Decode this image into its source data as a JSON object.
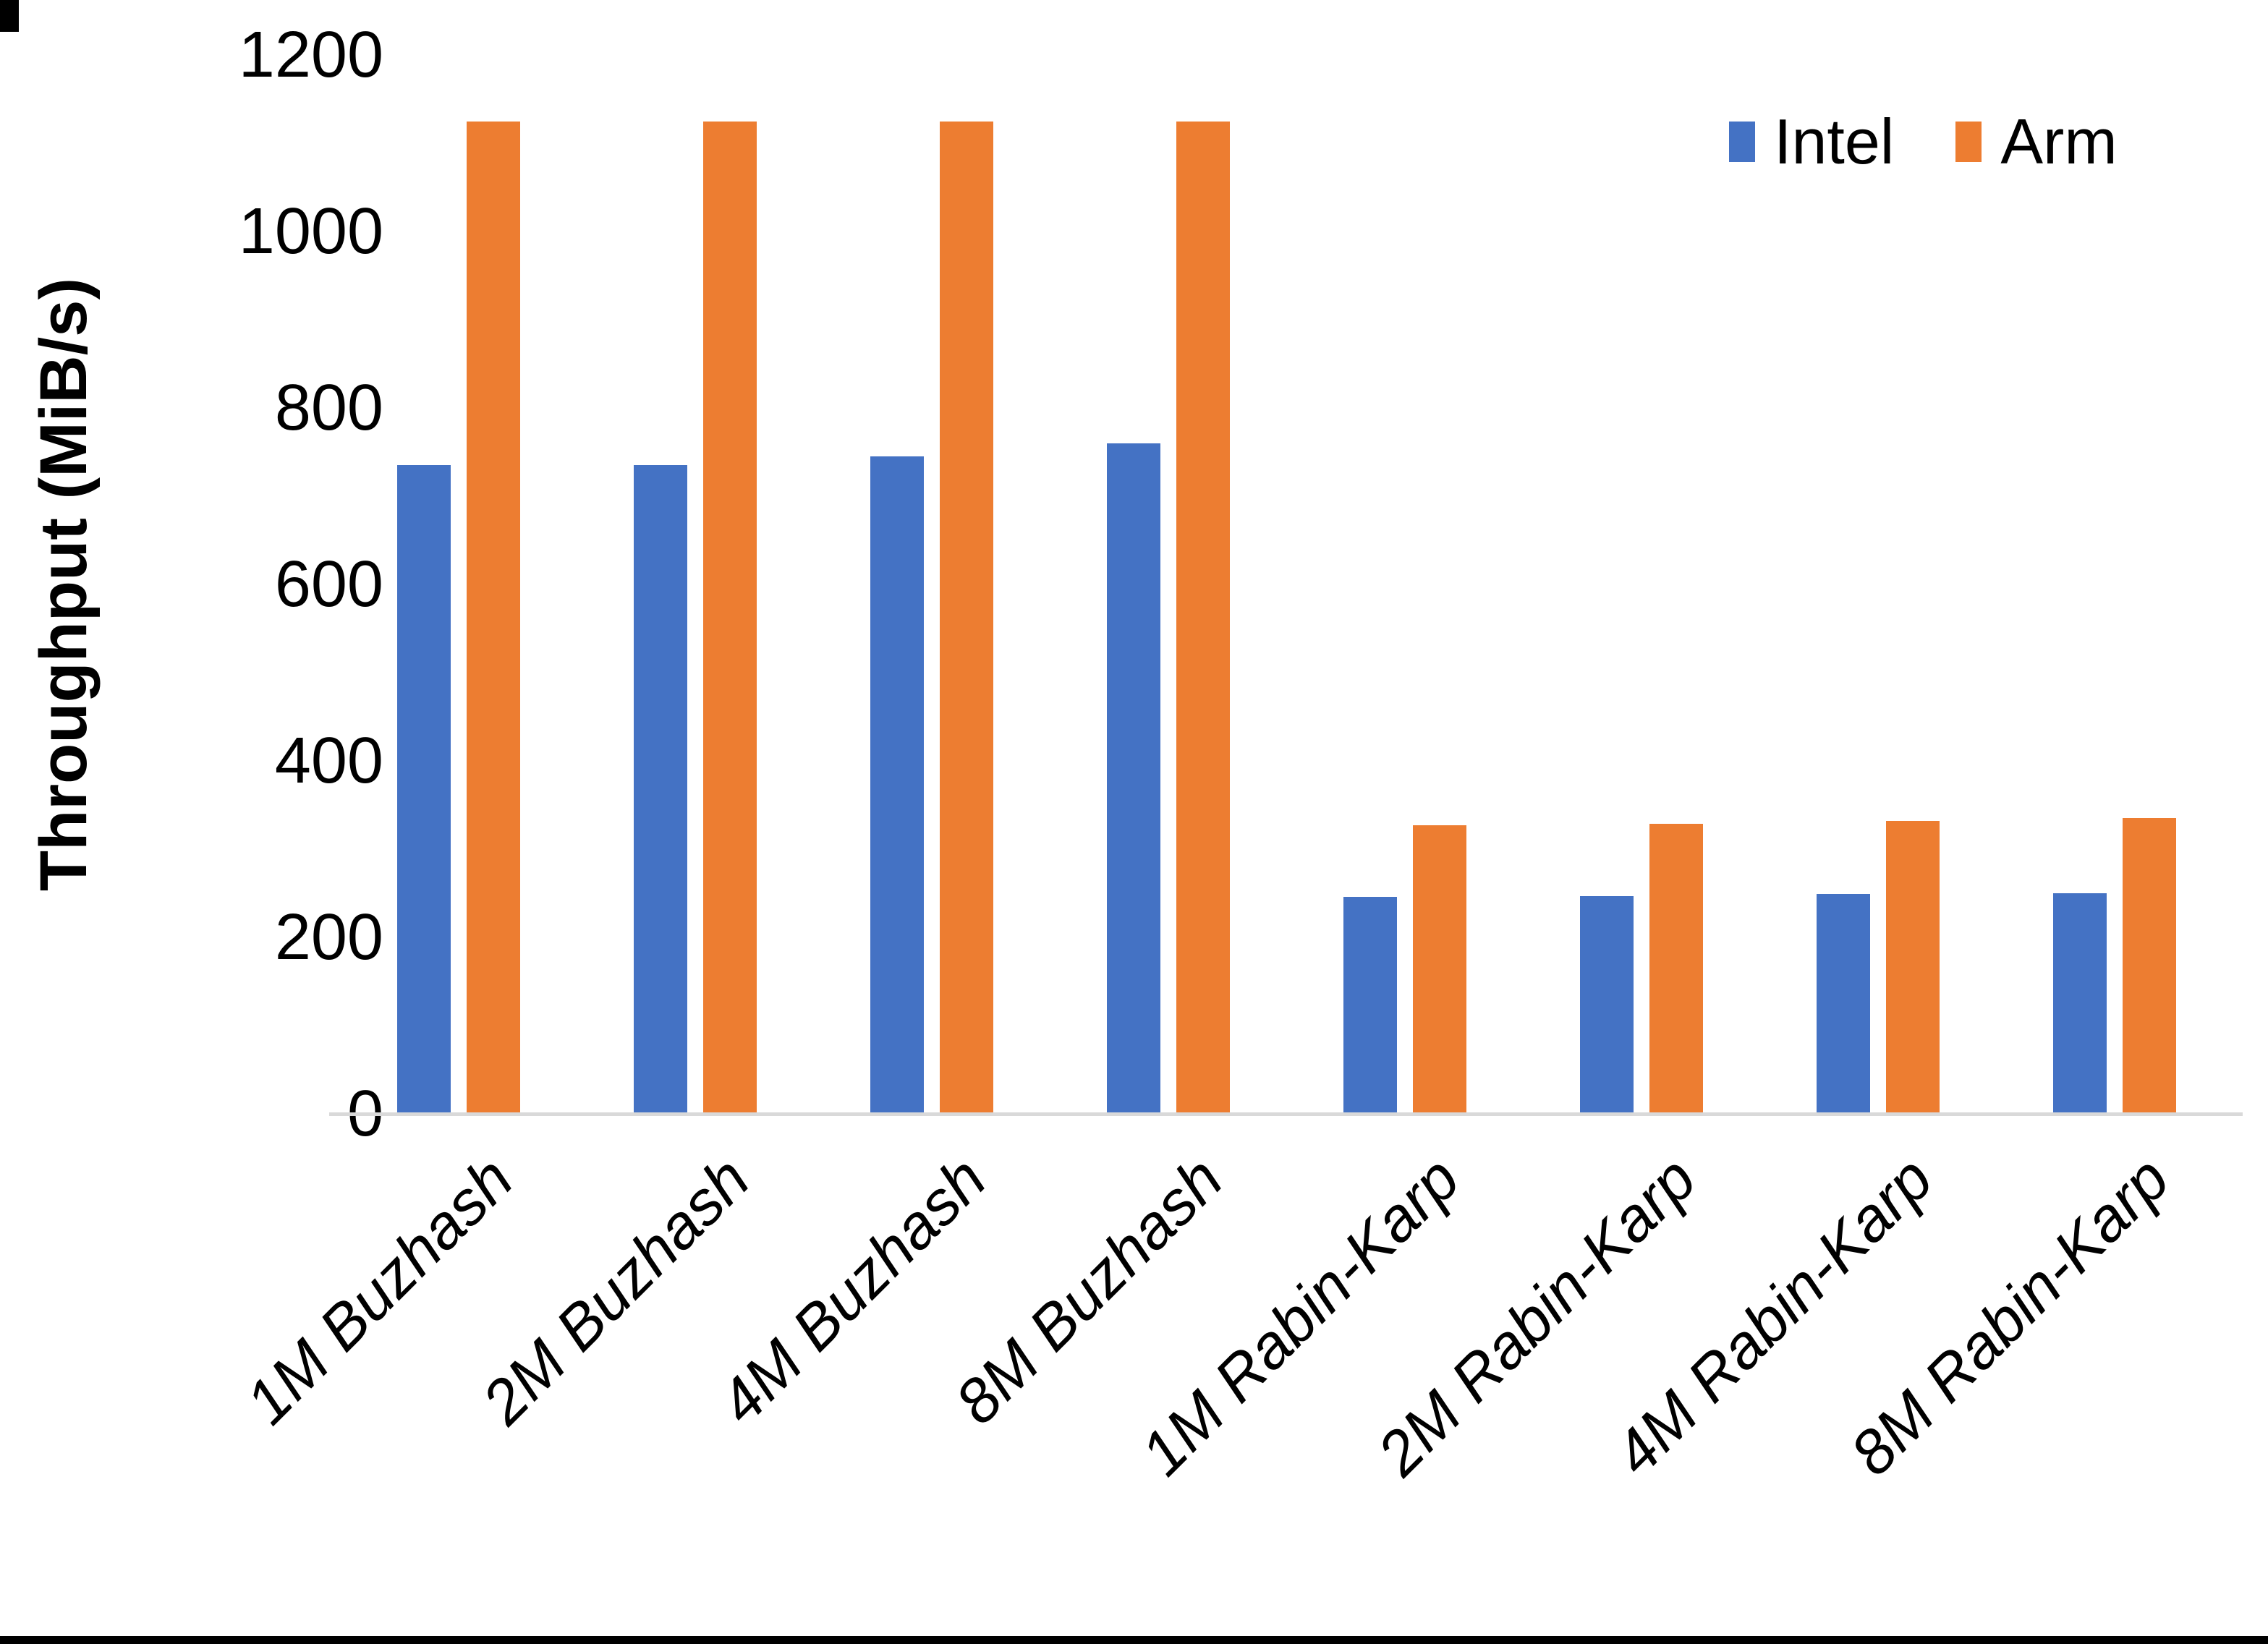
{
  "chart_data": {
    "type": "bar",
    "title": "",
    "categories": [
      "1M Buzhash",
      "2M Buzhash",
      "4M Buzhash",
      "8M Buzhash",
      "1M Rabin-Karp",
      "2M Rabin-Karp",
      "4M Rabin-Karp",
      "8M Rabin-Karp"
    ],
    "series": [
      {
        "name": "Intel",
        "color": "#4472C4",
        "values": [
          735,
          735,
          745,
          760,
          246,
          247,
          249,
          250
        ]
      },
      {
        "name": "Arm",
        "color": "#ED7D31",
        "values": [
          1125,
          1125,
          1125,
          1125,
          327,
          329,
          332,
          335
        ]
      }
    ],
    "xlabel": "",
    "ylabel": "Throughput (MiB/s)",
    "ylim": [
      0,
      1200
    ],
    "ytick_interval": 200,
    "ytick_labels": [
      "1200",
      "1000",
      "800",
      "600",
      "400",
      "200",
      "0"
    ],
    "grid": false,
    "legend_position": "top-right",
    "axis_line_color": "#D9D9D9",
    "background": "#FFFFFF"
  }
}
